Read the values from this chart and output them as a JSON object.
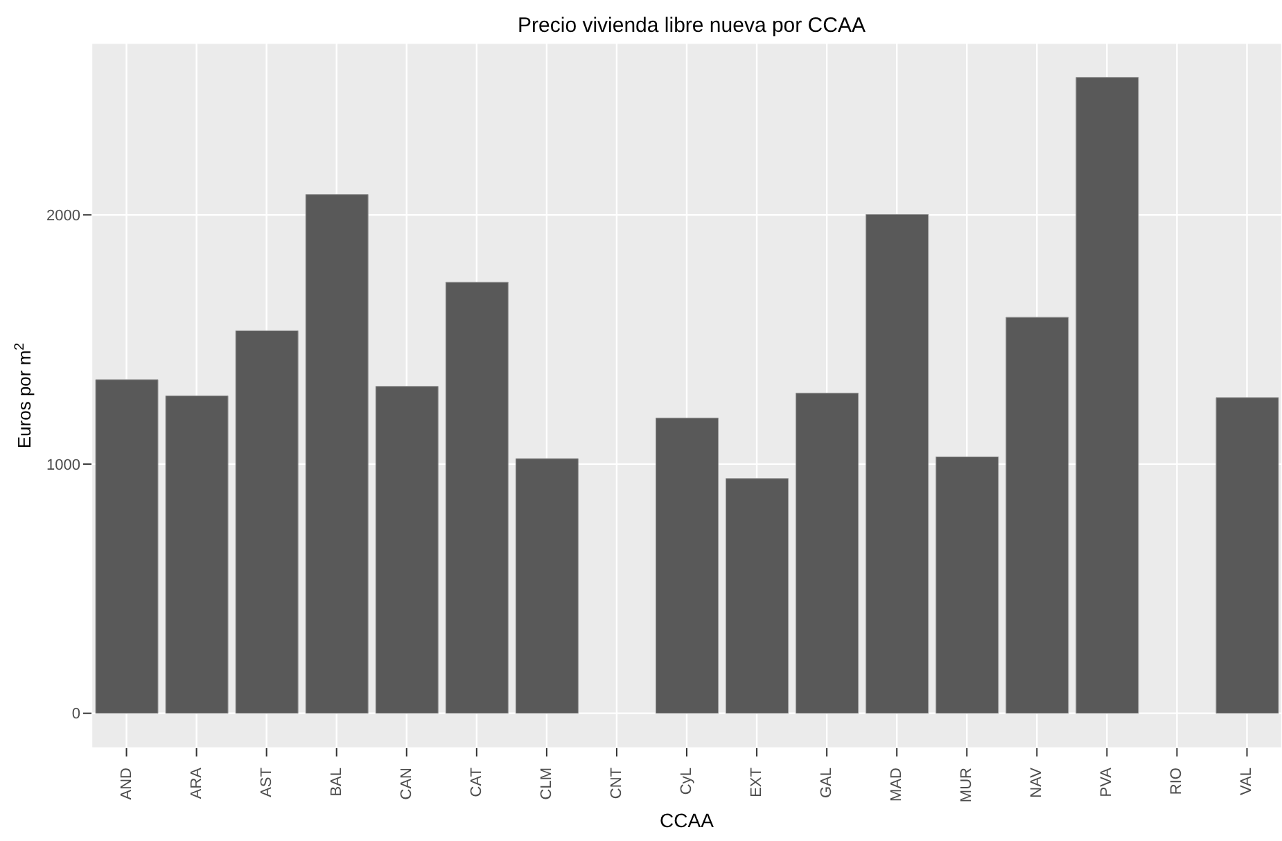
{
  "chart_data": {
    "type": "bar",
    "title": "Precio vivienda libre nueva por CCAA",
    "xlabel": "CCAA",
    "ylabel": "Euros por m$^{2}$",
    "categories": [
      "AND",
      "ARA",
      "AST",
      "BAL",
      "CAN",
      "CAT",
      "CLM",
      "CNT",
      "CyL",
      "EXT",
      "GAL",
      "MAD",
      "MUR",
      "NAV",
      "PVA",
      "RIO",
      "VAL"
    ],
    "values": [
      1339,
      1274,
      1535,
      2082,
      1312,
      1730,
      1022,
      null,
      1185,
      942,
      1285,
      2002,
      1029,
      1589,
      2552,
      null,
      1267
    ],
    "color": "#595959",
    "ylim": [
      -140,
      2690
    ],
    "yticks": [
      0,
      1000,
      2000
    ],
    "grid": true
  }
}
